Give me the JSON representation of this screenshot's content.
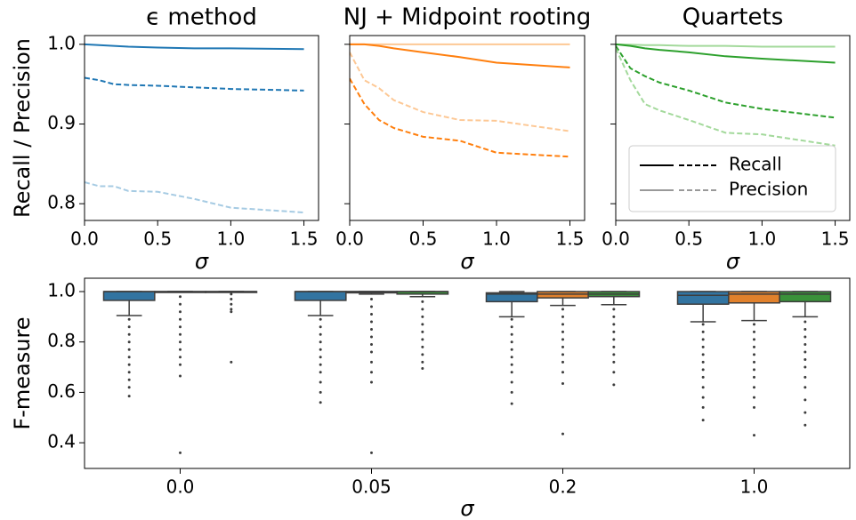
{
  "chart_data": [
    {
      "type": "line",
      "title": "ϵ method",
      "xlabel": "σ",
      "ylabel": "Recall / Precision",
      "x": [
        0,
        0.1,
        0.2,
        0.3,
        0.5,
        0.75,
        1.0,
        1.5
      ],
      "series": [
        {
          "color": "#1f77b4",
          "dash": false,
          "values": [
            1.0,
            0.999,
            0.998,
            0.997,
            0.996,
            0.995,
            0.995,
            0.994
          ]
        },
        {
          "color": "#1f77b4",
          "dash": true,
          "values": [
            0.958,
            0.955,
            0.95,
            0.949,
            0.948,
            0.946,
            0.944,
            0.942
          ]
        },
        {
          "color": "#a6cbe3",
          "dash": true,
          "values": [
            0.827,
            0.822,
            0.822,
            0.816,
            0.815,
            0.806,
            0.795,
            0.789
          ]
        }
      ],
      "xlim": [
        0,
        1.6
      ],
      "ylim": [
        0.779,
        1.011
      ],
      "xticks": [
        {
          "value": 0,
          "label": "0.0"
        },
        0.5,
        {
          "value": 1,
          "label": "1.0"
        },
        1.5
      ],
      "yticks": [
        0.8,
        0.9,
        {
          "value": 1,
          "label": "1.0"
        }
      ]
    },
    {
      "type": "line",
      "title": "NJ + Midpoint rooting",
      "xlabel": "σ",
      "x": [
        0,
        0.1,
        0.2,
        0.3,
        0.5,
        0.75,
        1.0,
        1.5
      ],
      "series": [
        {
          "color": "#fdc895",
          "dash": false,
          "values": [
            1.0,
            1.0,
            1.0,
            1.0,
            1.0,
            1.0,
            1.0,
            1.0
          ]
        },
        {
          "color": "#ff7f0e",
          "dash": false,
          "values": [
            1.0,
            1.0,
            0.998,
            0.995,
            0.99,
            0.984,
            0.977,
            0.971
          ]
        },
        {
          "color": "#fdc895",
          "dash": true,
          "values": [
            0.99,
            0.955,
            0.945,
            0.93,
            0.915,
            0.905,
            0.904,
            0.891
          ]
        },
        {
          "color": "#ff7f0e",
          "dash": true,
          "values": [
            0.957,
            0.925,
            0.905,
            0.895,
            0.884,
            0.879,
            0.864,
            0.859
          ]
        }
      ],
      "xlim": [
        0,
        1.6
      ],
      "ylim": [
        0.779,
        1.011
      ],
      "xticks": [
        {
          "value": 0,
          "label": "0.0"
        },
        0.5,
        {
          "value": 1,
          "label": "1.0"
        },
        1.5
      ],
      "yticks": [
        0.8,
        0.9,
        1
      ]
    },
    {
      "type": "line",
      "title": "Quartets",
      "xlabel": "σ",
      "x": [
        0,
        0.1,
        0.2,
        0.3,
        0.5,
        0.75,
        1.0,
        1.5
      ],
      "series": [
        {
          "color": "#a3d99b",
          "dash": false,
          "values": [
            1.0,
            0.9995,
            0.999,
            0.999,
            0.998,
            0.998,
            0.997,
            0.997
          ]
        },
        {
          "color": "#2ca02c",
          "dash": false,
          "values": [
            1.0,
            0.998,
            0.995,
            0.993,
            0.99,
            0.985,
            0.982,
            0.977
          ]
        },
        {
          "color": "#2ca02c",
          "dash": true,
          "values": [
            0.998,
            0.97,
            0.96,
            0.952,
            0.942,
            0.927,
            0.919,
            0.908
          ]
        },
        {
          "color": "#a3d99b",
          "dash": true,
          "values": [
            0.995,
            0.955,
            0.925,
            0.917,
            0.905,
            0.889,
            0.887,
            0.873
          ]
        }
      ],
      "xlim": [
        0,
        1.6
      ],
      "ylim": [
        0.779,
        1.011
      ],
      "xticks": [
        {
          "value": 0,
          "label": "0.0"
        },
        0.5,
        {
          "value": 1,
          "label": "1.0"
        },
        1.5
      ],
      "yticks": [
        0.8,
        0.9,
        1
      ],
      "legend": {
        "loc": "lower right",
        "entries": [
          {
            "label": "Recall",
            "color": "#000000"
          },
          {
            "label": "Precision",
            "color": "#999999"
          }
        ]
      }
    },
    {
      "type": "box",
      "xlabel": "σ",
      "ylabel": "F-measure",
      "categories": [
        "0.0",
        "0.05",
        "0.2",
        "1.0"
      ],
      "ylim": [
        0.298,
        1.053
      ],
      "yticks": [
        0.4,
        0.6,
        0.8,
        {
          "value": 1,
          "label": "1.0"
        }
      ],
      "series": [
        {
          "color": "#3274a1",
          "boxes": [
            {
              "q1": 0.965,
              "median": 1.0,
              "q3": 1.0,
              "whislo": 0.905,
              "whishi": 1.0,
              "outliers": [
                0.89,
                0.86,
                0.83,
                0.8,
                0.77,
                0.74,
                0.71,
                0.68,
                0.65,
                0.62,
                0.585
              ]
            },
            {
              "q1": 0.965,
              "median": 1.0,
              "q3": 1.0,
              "whislo": 0.905,
              "whishi": 1.0,
              "outliers": [
                0.89,
                0.86,
                0.83,
                0.8,
                0.77,
                0.74,
                0.71,
                0.68,
                0.64,
                0.6,
                0.56
              ]
            },
            {
              "q1": 0.96,
              "median": 0.99,
              "q3": 0.995,
              "whislo": 0.9,
              "whishi": 1.0,
              "outliers": [
                0.89,
                0.86,
                0.83,
                0.8,
                0.77,
                0.74,
                0.71,
                0.68,
                0.64,
                0.6,
                0.555
              ]
            },
            {
              "q1": 0.95,
              "median": 0.985,
              "q3": 1.0,
              "whislo": 0.88,
              "whishi": 1.0,
              "outliers": [
                0.87,
                0.84,
                0.81,
                0.78,
                0.75,
                0.72,
                0.69,
                0.66,
                0.62,
                0.58,
                0.54,
                0.49
              ]
            }
          ]
        },
        {
          "color": "#e1812c",
          "boxes": [
            {
              "q1": 1.0,
              "median": 1.0,
              "q3": 1.0,
              "whislo": 1.0,
              "whishi": 1.0,
              "outliers": [
                0.98,
                0.95,
                0.92,
                0.89,
                0.86,
                0.83,
                0.8,
                0.77,
                0.74,
                0.71,
                0.665,
                0.36
              ]
            },
            {
              "q1": 0.995,
              "median": 1.0,
              "q3": 1.0,
              "whislo": 0.99,
              "whishi": 1.0,
              "outliers": [
                0.97,
                0.94,
                0.91,
                0.88,
                0.85,
                0.82,
                0.79,
                0.76,
                0.72,
                0.68,
                0.64,
                0.36
              ]
            },
            {
              "q1": 0.975,
              "median": 0.99,
              "q3": 1.0,
              "whislo": 0.945,
              "whishi": 1.0,
              "outliers": [
                0.93,
                0.9,
                0.87,
                0.84,
                0.81,
                0.78,
                0.75,
                0.72,
                0.68,
                0.635,
                0.435
              ]
            },
            {
              "q1": 0.955,
              "median": 0.99,
              "q3": 1.0,
              "whislo": 0.885,
              "whishi": 1.0,
              "outliers": [
                0.87,
                0.84,
                0.81,
                0.78,
                0.75,
                0.72,
                0.69,
                0.66,
                0.62,
                0.58,
                0.54,
                0.43
              ]
            }
          ]
        },
        {
          "color": "#3a923a",
          "boxes": [
            {
              "q1": 1.0,
              "median": 1.0,
              "q3": 1.0,
              "whislo": 1.0,
              "whishi": 1.0,
              "outliers": [
                0.99,
                0.97,
                0.95,
                0.93,
                0.92,
                0.72
              ]
            },
            {
              "q1": 0.99,
              "median": 1.0,
              "q3": 1.0,
              "whislo": 0.98,
              "whishi": 1.0,
              "outliers": [
                0.96,
                0.93,
                0.9,
                0.87,
                0.84,
                0.81,
                0.78,
                0.75,
                0.72,
                0.695
              ]
            },
            {
              "q1": 0.98,
              "median": 0.99,
              "q3": 1.0,
              "whislo": 0.948,
              "whishi": 1.0,
              "outliers": [
                0.93,
                0.9,
                0.87,
                0.84,
                0.81,
                0.78,
                0.75,
                0.72,
                0.68,
                0.63
              ]
            },
            {
              "q1": 0.96,
              "median": 0.99,
              "q3": 1.0,
              "whislo": 0.9,
              "whishi": 1.0,
              "outliers": [
                0.88,
                0.85,
                0.82,
                0.79,
                0.76,
                0.73,
                0.7,
                0.66,
                0.62,
                0.57,
                0.52,
                0.47
              ]
            }
          ]
        }
      ]
    }
  ]
}
